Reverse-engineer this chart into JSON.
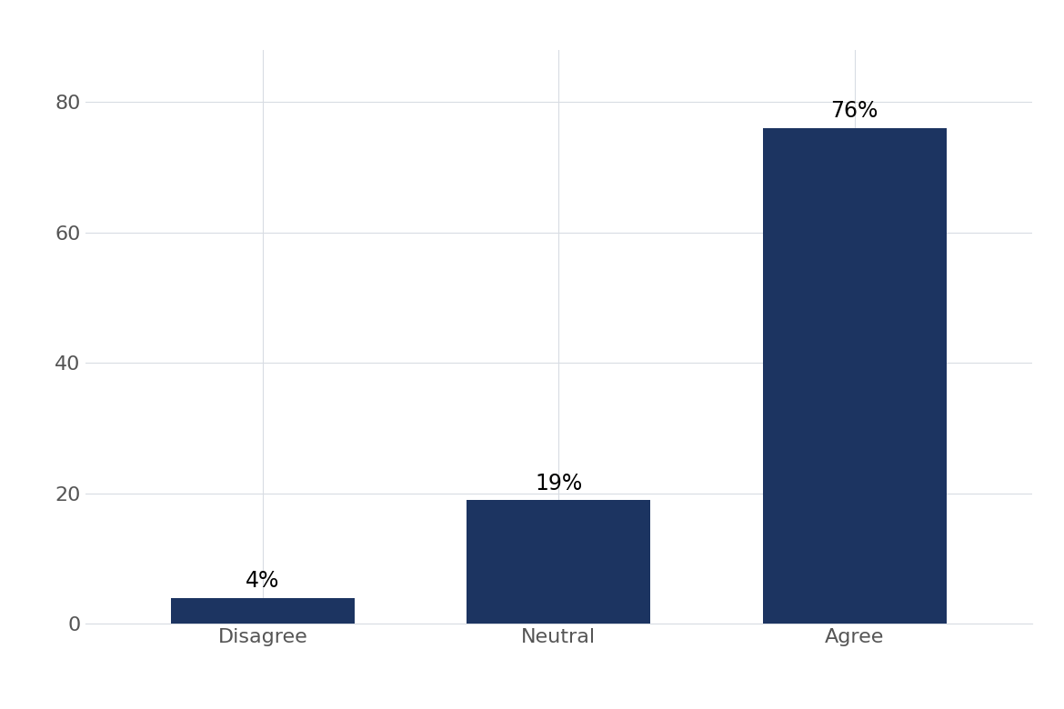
{
  "categories": [
    "Disagree",
    "Neutral",
    "Agree"
  ],
  "values": [
    4,
    19,
    76
  ],
  "labels": [
    "4%",
    "19%",
    "76%"
  ],
  "bar_color": "#1c3461",
  "background_color": "#ffffff",
  "grid_color": "#d8dce3",
  "ylim": [
    0,
    88
  ],
  "yticks": [
    0,
    20,
    40,
    60,
    80
  ],
  "bar_width": 0.62,
  "label_fontsize": 17,
  "tick_fontsize": 16,
  "tick_color": "#555555"
}
